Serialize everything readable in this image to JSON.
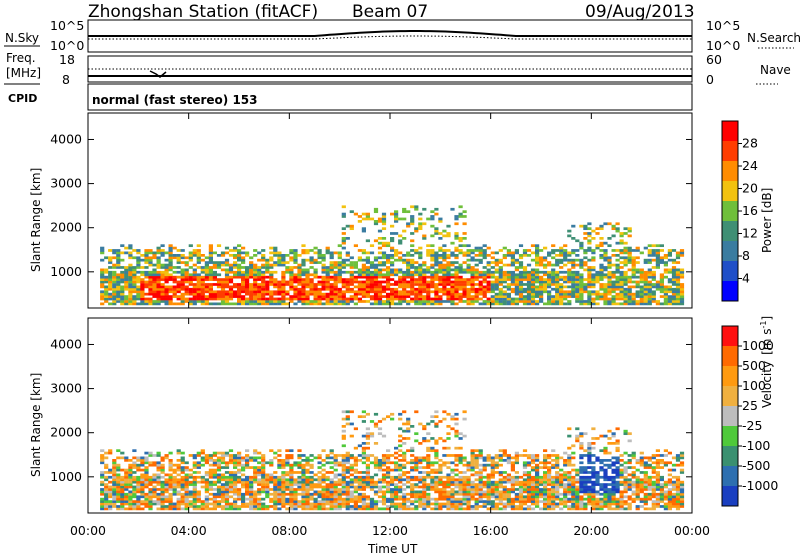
{
  "header": {
    "station": "Zhongshan Station (fitACF)",
    "beam": "Beam 07",
    "date": "09/Aug/2013"
  },
  "strips": {
    "nsky_label": "N.Sky",
    "nsky_ticks": [
      "10^5",
      "10^0"
    ],
    "nsearch_label": "N.Search",
    "nsearch_ticks": [
      "10^5",
      "10^0"
    ],
    "freq_label": "Freq.",
    "freq_unit": "[MHz]",
    "freq_ticks": [
      "18",
      "8"
    ],
    "nave_label": "Nave",
    "nave_ticks": [
      "60",
      "0"
    ],
    "cpid_label": "CPID",
    "cpid_text": "normal (fast stereo) 153"
  },
  "chart_data": [
    {
      "type": "heatmap",
      "name": "power",
      "ylabel": "Slant Range [km]",
      "xlabel": "Time UT",
      "x_ticks": [
        "00:00",
        "04:00",
        "08:00",
        "12:00",
        "16:00",
        "20:00",
        "00:00"
      ],
      "xlim_hours": [
        0,
        24
      ],
      "ylim": [
        180,
        4600
      ],
      "y_ticks": [
        1000,
        2000,
        3000,
        4000
      ],
      "colorbar": {
        "label": "Power [dB]",
        "ticks": [
          "28",
          "24",
          "20",
          "16",
          "12",
          "8",
          "4"
        ],
        "range": [
          0,
          32
        ],
        "colors": [
          "#0000ff",
          "#1f4fc8",
          "#3a7ca0",
          "#3f8f74",
          "#6fbf3a",
          "#f2c20f",
          "#ff8c00",
          "#ff3d00",
          "#ff0000"
        ]
      }
    },
    {
      "type": "heatmap",
      "name": "velocity",
      "ylabel": "Slant Range [km]",
      "xlabel": "Time UT",
      "x_ticks": [
        "00:00",
        "04:00",
        "08:00",
        "12:00",
        "16:00",
        "20:00",
        "00:00"
      ],
      "xlim_hours": [
        0,
        24
      ],
      "ylim": [
        180,
        4600
      ],
      "y_ticks": [
        1000,
        2000,
        3000,
        4000
      ],
      "colorbar": {
        "label": "Velocity",
        "unit": "[m s",
        "unit_sup": "-1",
        "unit_close": "]",
        "ticks": [
          "1000",
          "500",
          "100",
          "25",
          "-25",
          "-100",
          "-500",
          "-1000"
        ],
        "colors": [
          "#1a3fc0",
          "#2d6fb0",
          "#3a9070",
          "#4fc93a",
          "#bdbdbd",
          "#f0b040",
          "#ff9a10",
          "#ff6a00",
          "#ff1010"
        ]
      }
    }
  ],
  "time_label": "Time UT"
}
